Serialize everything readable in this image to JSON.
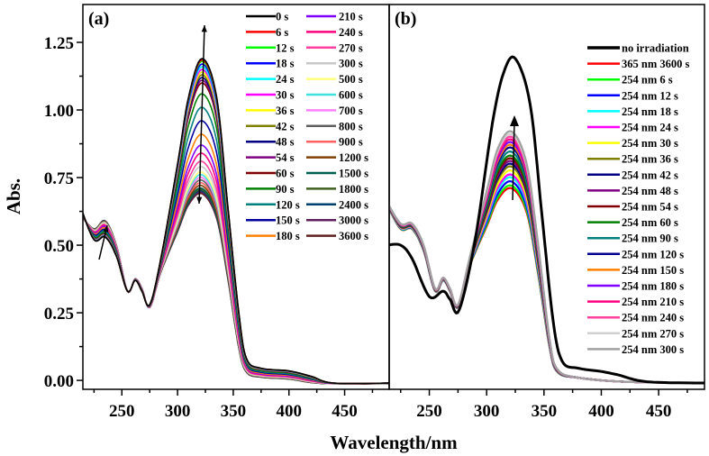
{
  "chart_data": [
    {
      "type": "line",
      "panel_label": "(a)",
      "xlabel": "Wavelength/nm",
      "ylabel": "Abs.",
      "xlim": [
        215,
        490
      ],
      "ylim": [
        -0.033,
        1.39
      ],
      "xticks": [
        250,
        300,
        350,
        400,
        450
      ],
      "yticks": [
        "0.00",
        "0.25",
        "0.50",
        "0.75",
        "1.00",
        "1.25"
      ],
      "peak_wavelength_nm": 322,
      "legend_position": "top-right",
      "series": [
        {
          "name": "0 s",
          "color": "#000000",
          "peak": 1.19
        },
        {
          "name": "6 s",
          "color": "#ff0000",
          "peak": 1.185
        },
        {
          "name": "12 s",
          "color": "#00ff00",
          "peak": 1.18
        },
        {
          "name": "18 s",
          "color": "#0000ff",
          "peak": 1.17
        },
        {
          "name": "24 s",
          "color": "#00ffff",
          "peak": 1.16
        },
        {
          "name": "30 s",
          "color": "#ff00ff",
          "peak": 1.15
        },
        {
          "name": "36 s",
          "color": "#ffff00",
          "peak": 1.14
        },
        {
          "name": "42 s",
          "color": "#808000",
          "peak": 1.13
        },
        {
          "name": "48 s",
          "color": "#000080",
          "peak": 1.12
        },
        {
          "name": "54 s",
          "color": "#800080",
          "peak": 1.11
        },
        {
          "name": "60 s",
          "color": "#800000",
          "peak": 1.1
        },
        {
          "name": "90 s",
          "color": "#008000",
          "peak": 1.06
        },
        {
          "name": "120 s",
          "color": "#008080",
          "peak": 1.01
        },
        {
          "name": "150 s",
          "color": "#0000a0",
          "peak": 0.96
        },
        {
          "name": "180 s",
          "color": "#ff8000",
          "peak": 0.91
        },
        {
          "name": "210 s",
          "color": "#8000ff",
          "peak": 0.87
        },
        {
          "name": "240 s",
          "color": "#ff0080",
          "peak": 0.84
        },
        {
          "name": "270 s",
          "color": "#ff40a0",
          "peak": 0.81
        },
        {
          "name": "300 s",
          "color": "#c8c8c8",
          "peak": 0.79
        },
        {
          "name": "500 s",
          "color": "#ffff80",
          "peak": 0.77
        },
        {
          "name": "600 s",
          "color": "#40e0e0",
          "peak": 0.76
        },
        {
          "name": "700 s",
          "color": "#ff80ff",
          "peak": 0.75
        },
        {
          "name": "800 s",
          "color": "#606060",
          "peak": 0.74
        },
        {
          "name": "900 s",
          "color": "#ff6060",
          "peak": 0.73
        },
        {
          "name": "1200 s",
          "color": "#804000",
          "peak": 0.72
        },
        {
          "name": "1500 s",
          "color": "#006050",
          "peak": 0.71
        },
        {
          "name": "1800 s",
          "color": "#406020",
          "peak": 0.705
        },
        {
          "name": "2400 s",
          "color": "#004070",
          "peak": 0.7
        },
        {
          "name": "3000 s",
          "color": "#602060",
          "peak": 0.695
        },
        {
          "name": "3600 s",
          "color": "#602020",
          "peak": 0.69
        }
      ]
    },
    {
      "type": "line",
      "panel_label": "(b)",
      "xlim": [
        215,
        490
      ],
      "ylim": [
        -0.033,
        1.39
      ],
      "xticks": [
        250,
        300,
        350,
        400,
        450
      ],
      "peak_wavelength_nm": 322,
      "legend_position": "right",
      "series": [
        {
          "name": "no irradiation",
          "color": "#000000",
          "peak": 1.19
        },
        {
          "name": "365 nm 3600 s",
          "color": "#ff0000",
          "peak": 0.71
        },
        {
          "name": "254 nm 6 s",
          "color": "#00ff00",
          "peak": 0.72
        },
        {
          "name": "254 nm 12 s",
          "color": "#0000ff",
          "peak": 0.735
        },
        {
          "name": "254 nm 18 s",
          "color": "#00ffff",
          "peak": 0.75
        },
        {
          "name": "254 nm 24 s",
          "color": "#ff00ff",
          "peak": 0.76
        },
        {
          "name": "254 nm 30 s",
          "color": "#ffff00",
          "peak": 0.775
        },
        {
          "name": "254 nm 36 s",
          "color": "#808000",
          "peak": 0.79
        },
        {
          "name": "254 nm 42 s",
          "color": "#000080",
          "peak": 0.8
        },
        {
          "name": "254 nm 48 s",
          "color": "#800080",
          "peak": 0.81
        },
        {
          "name": "254 nm 54 s",
          "color": "#800000",
          "peak": 0.82
        },
        {
          "name": "254 nm 60 s",
          "color": "#008000",
          "peak": 0.83
        },
        {
          "name": "254 nm 90 s",
          "color": "#008080",
          "peak": 0.845
        },
        {
          "name": "254 nm 120 s",
          "color": "#000090",
          "peak": 0.86
        },
        {
          "name": "254 nm 150 s",
          "color": "#ff8000",
          "peak": 0.87
        },
        {
          "name": "254 nm 180 s",
          "color": "#8000ff",
          "peak": 0.88
        },
        {
          "name": "254 nm 210 s",
          "color": "#ff0080",
          "peak": 0.89
        },
        {
          "name": "254 nm 240 s",
          "color": "#ff40a0",
          "peak": 0.9
        },
        {
          "name": "254 nm 270 s",
          "color": "#d0d0d0",
          "peak": 0.91
        },
        {
          "name": "254 nm 300 s",
          "color": "#a0a0a0",
          "peak": 0.92
        }
      ]
    }
  ]
}
